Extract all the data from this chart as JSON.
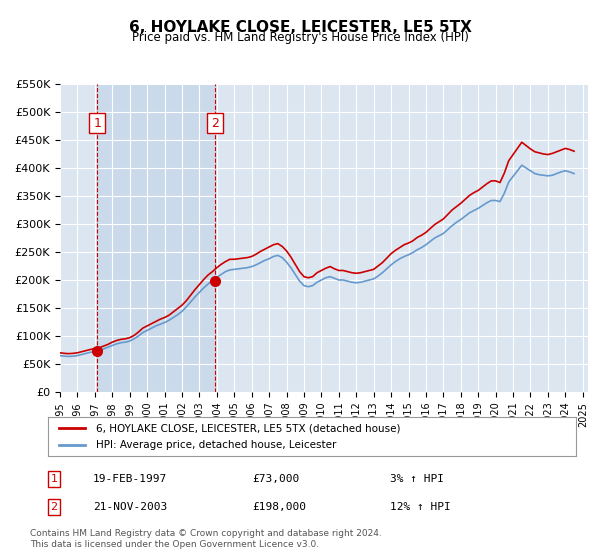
{
  "title": "6, HOYLAKE CLOSE, LEICESTER, LE5 5TX",
  "subtitle": "Price paid vs. HM Land Registry's House Price Index (HPI)",
  "title_fontsize": 13,
  "subtitle_fontsize": 10,
  "background_color": "#ffffff",
  "plot_bg_color": "#dce6f1",
  "grid_color": "#ffffff",
  "red_color": "#cc0000",
  "blue_color": "#6699cc",
  "shade_color": "#c5d5e8",
  "ylim": [
    0,
    550000
  ],
  "yticks": [
    0,
    50000,
    100000,
    150000,
    200000,
    250000,
    300000,
    350000,
    400000,
    450000,
    500000,
    550000
  ],
  "ytick_labels": [
    "£0",
    "£50K",
    "£100K",
    "£150K",
    "£200K",
    "£250K",
    "£300K",
    "£350K",
    "£400K",
    "£450K",
    "£500K",
    "£550K"
  ],
  "xlim_start": 1995.0,
  "xlim_end": 2025.3,
  "xtick_years": [
    1995,
    1996,
    1997,
    1998,
    1999,
    2000,
    2001,
    2002,
    2003,
    2004,
    2005,
    2006,
    2007,
    2008,
    2009,
    2010,
    2011,
    2012,
    2013,
    2014,
    2015,
    2016,
    2017,
    2018,
    2019,
    2020,
    2021,
    2022,
    2023,
    2024,
    2025
  ],
  "sale1_x": 1997.13,
  "sale1_y": 73000,
  "sale2_x": 2003.9,
  "sale2_y": 198000,
  "vline1_x": 1997.13,
  "vline2_x": 2003.9,
  "legend_label_red": "6, HOYLAKE CLOSE, LEICESTER, LE5 5TX (detached house)",
  "legend_label_blue": "HPI: Average price, detached house, Leicester",
  "table_rows": [
    {
      "num": "1",
      "date": "19-FEB-1997",
      "price": "£73,000",
      "hpi": "3% ↑ HPI"
    },
    {
      "num": "2",
      "date": "21-NOV-2003",
      "price": "£198,000",
      "hpi": "12% ↑ HPI"
    }
  ],
  "footer_text": "Contains HM Land Registry data © Crown copyright and database right 2024.\nThis data is licensed under the Open Government Licence v3.0.",
  "hpi_data": {
    "years": [
      1995.0,
      1995.25,
      1995.5,
      1995.75,
      1996.0,
      1996.25,
      1996.5,
      1996.75,
      1997.0,
      1997.25,
      1997.5,
      1997.75,
      1998.0,
      1998.25,
      1998.5,
      1998.75,
      1999.0,
      1999.25,
      1999.5,
      1999.75,
      2000.0,
      2000.25,
      2000.5,
      2000.75,
      2001.0,
      2001.25,
      2001.5,
      2001.75,
      2002.0,
      2002.25,
      2002.5,
      2002.75,
      2003.0,
      2003.25,
      2003.5,
      2003.75,
      2004.0,
      2004.25,
      2004.5,
      2004.75,
      2005.0,
      2005.25,
      2005.5,
      2005.75,
      2006.0,
      2006.25,
      2006.5,
      2006.75,
      2007.0,
      2007.25,
      2007.5,
      2007.75,
      2008.0,
      2008.25,
      2008.5,
      2008.75,
      2009.0,
      2009.25,
      2009.5,
      2009.75,
      2010.0,
      2010.25,
      2010.5,
      2010.75,
      2011.0,
      2011.25,
      2011.5,
      2011.75,
      2012.0,
      2012.25,
      2012.5,
      2012.75,
      2013.0,
      2013.25,
      2013.5,
      2013.75,
      2014.0,
      2014.25,
      2014.5,
      2014.75,
      2015.0,
      2015.25,
      2015.5,
      2015.75,
      2016.0,
      2016.25,
      2016.5,
      2016.75,
      2017.0,
      2017.25,
      2017.5,
      2017.75,
      2018.0,
      2018.25,
      2018.5,
      2018.75,
      2019.0,
      2019.25,
      2019.5,
      2019.75,
      2020.0,
      2020.25,
      2020.5,
      2020.75,
      2021.0,
      2021.25,
      2021.5,
      2021.75,
      2022.0,
      2022.25,
      2022.5,
      2022.75,
      2023.0,
      2023.25,
      2023.5,
      2023.75,
      2024.0,
      2024.25,
      2024.5
    ],
    "values": [
      65000,
      64000,
      63500,
      64000,
      65000,
      67000,
      69000,
      71000,
      72000,
      74000,
      77000,
      80000,
      83000,
      86000,
      88000,
      89000,
      91000,
      95000,
      100000,
      106000,
      110000,
      114000,
      118000,
      121000,
      124000,
      128000,
      133000,
      138000,
      144000,
      152000,
      161000,
      170000,
      178000,
      186000,
      193000,
      199000,
      205000,
      210000,
      215000,
      218000,
      219000,
      220000,
      221000,
      222000,
      224000,
      227000,
      231000,
      235000,
      238000,
      242000,
      244000,
      240000,
      232000,
      222000,
      210000,
      198000,
      190000,
      188000,
      190000,
      196000,
      200000,
      204000,
      206000,
      203000,
      200000,
      200000,
      198000,
      196000,
      195000,
      196000,
      198000,
      200000,
      202000,
      207000,
      213000,
      220000,
      227000,
      233000,
      238000,
      242000,
      245000,
      249000,
      254000,
      258000,
      263000,
      269000,
      275000,
      279000,
      283000,
      290000,
      297000,
      303000,
      308000,
      314000,
      320000,
      324000,
      328000,
      333000,
      338000,
      342000,
      342000,
      340000,
      355000,
      375000,
      385000,
      395000,
      405000,
      400000,
      395000,
      390000,
      388000,
      387000,
      386000,
      387000,
      390000,
      393000,
      395000,
      393000,
      390000
    ]
  },
  "red_data": {
    "years": [
      1995.0,
      1995.25,
      1995.5,
      1995.75,
      1996.0,
      1996.25,
      1996.5,
      1996.75,
      1997.0,
      1997.25,
      1997.5,
      1997.75,
      1998.0,
      1998.25,
      1998.5,
      1998.75,
      1999.0,
      1999.25,
      1999.5,
      1999.75,
      2000.0,
      2000.25,
      2000.5,
      2000.75,
      2001.0,
      2001.25,
      2001.5,
      2001.75,
      2002.0,
      2002.25,
      2002.5,
      2002.75,
      2003.0,
      2003.25,
      2003.5,
      2003.75,
      2004.0,
      2004.25,
      2004.5,
      2004.75,
      2005.0,
      2005.25,
      2005.5,
      2005.75,
      2006.0,
      2006.25,
      2006.5,
      2006.75,
      2007.0,
      2007.25,
      2007.5,
      2007.75,
      2008.0,
      2008.25,
      2008.5,
      2008.75,
      2009.0,
      2009.25,
      2009.5,
      2009.75,
      2010.0,
      2010.25,
      2010.5,
      2010.75,
      2011.0,
      2011.25,
      2011.5,
      2011.75,
      2012.0,
      2012.25,
      2012.5,
      2012.75,
      2013.0,
      2013.25,
      2013.5,
      2013.75,
      2014.0,
      2014.25,
      2014.5,
      2014.75,
      2015.0,
      2015.25,
      2015.5,
      2015.75,
      2016.0,
      2016.25,
      2016.5,
      2016.75,
      2017.0,
      2017.25,
      2017.5,
      2017.75,
      2018.0,
      2018.25,
      2018.5,
      2018.75,
      2019.0,
      2019.25,
      2019.5,
      2019.75,
      2020.0,
      2020.25,
      2020.5,
      2020.75,
      2021.0,
      2021.25,
      2021.5,
      2021.75,
      2022.0,
      2022.25,
      2022.5,
      2022.75,
      2023.0,
      2023.25,
      2023.5,
      2023.75,
      2024.0,
      2024.25,
      2024.5
    ],
    "values": [
      70000,
      69000,
      68500,
      69000,
      70000,
      72000,
      74000,
      76000,
      77500,
      79000,
      82000,
      85000,
      89000,
      92000,
      94000,
      95000,
      97000,
      101000,
      107000,
      114000,
      118000,
      122000,
      126000,
      130000,
      133000,
      137000,
      143000,
      149000,
      155000,
      163000,
      173000,
      183000,
      192000,
      201000,
      209000,
      215000,
      222000,
      228000,
      233000,
      237000,
      237000,
      238000,
      239000,
      240000,
      242000,
      246000,
      251000,
      255000,
      259000,
      263000,
      265000,
      260000,
      252000,
      241000,
      228000,
      215000,
      206000,
      204000,
      206000,
      213000,
      217000,
      221000,
      224000,
      220000,
      217000,
      217000,
      215000,
      213000,
      212000,
      213000,
      215000,
      217000,
      219000,
      225000,
      231000,
      239000,
      247000,
      253000,
      258000,
      263000,
      266000,
      270000,
      276000,
      280000,
      285000,
      292000,
      299000,
      304000,
      309000,
      317000,
      325000,
      331000,
      337000,
      344000,
      351000,
      356000,
      360000,
      366000,
      372000,
      377000,
      377000,
      374000,
      391000,
      413000,
      424000,
      435000,
      446000,
      440000,
      434000,
      429000,
      427000,
      425000,
      424000,
      426000,
      429000,
      432000,
      435000,
      433000,
      430000
    ]
  }
}
